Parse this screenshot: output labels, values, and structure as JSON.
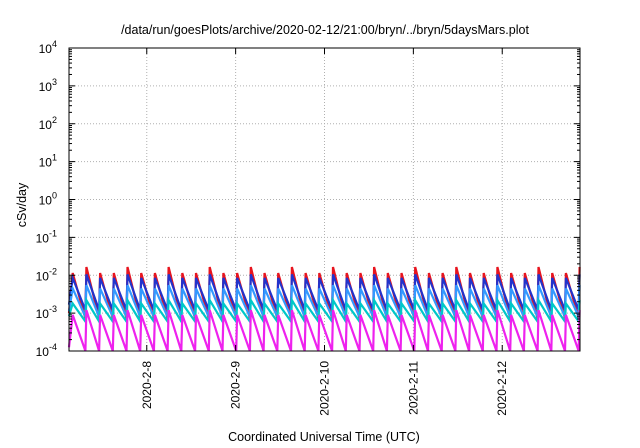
{
  "chart_data": {
    "type": "line",
    "title": "/data/run/goesPlots/archive/2020-02-12/21:00/bryn/../bryn/5daysMars.plot",
    "xlabel": "Coordinated Universal Time (UTC)",
    "ylabel": "cSv/day",
    "y_scale": "log",
    "ylim": [
      0.0001,
      10000
    ],
    "xlim": [
      "2020-02-07T03:00",
      "2020-02-12T21:00"
    ],
    "grid": true,
    "y_ticks": [
      {
        "value": 0.0001,
        "base": "10",
        "exp": "-4"
      },
      {
        "value": 0.001,
        "base": "10",
        "exp": "-3"
      },
      {
        "value": 0.01,
        "base": "10",
        "exp": "-2"
      },
      {
        "value": 0.1,
        "base": "10",
        "exp": "-1"
      },
      {
        "value": 1,
        "base": "10",
        "exp": "0"
      },
      {
        "value": 10,
        "base": "10",
        "exp": "1"
      },
      {
        "value": 100,
        "base": "10",
        "exp": "2"
      },
      {
        "value": 1000,
        "base": "10",
        "exp": "3"
      },
      {
        "value": 10000,
        "base": "10",
        "exp": "4"
      }
    ],
    "x_ticks": [
      {
        "value": "2020-02-08T00:00",
        "label": "2020-2-8"
      },
      {
        "value": "2020-02-09T00:00",
        "label": "2020-2-9"
      },
      {
        "value": "2020-02-10T00:00",
        "label": "2020-2-10"
      },
      {
        "value": "2020-02-11T00:00",
        "label": "2020-2-11"
      },
      {
        "value": "2020-02-12T00:00",
        "label": "2020-2-12"
      }
    ],
    "sawtooth": {
      "period_hours": 3.7,
      "first_peak": "2020-02-07T04:00"
    },
    "series": [
      {
        "color": "#e8141e",
        "peak": 0.0115,
        "trough": 0.00072,
        "alt_peak": 0.0165
      },
      {
        "color": "#2233cc",
        "peak": 0.0085,
        "trough": 0.0012,
        "alt_peak": 0.0105
      },
      {
        "color": "#3399ff",
        "peak": 0.0045,
        "trough": 0.0008,
        "alt_peak": 0.0055
      },
      {
        "color": "#00c8c8",
        "peak": 0.0018,
        "trough": 0.0006,
        "alt_peak": 0.0022
      },
      {
        "color": "#ee22ee",
        "peak": 0.0009,
        "trough": 9e-05,
        "alt_peak": 0.0012
      }
    ]
  }
}
